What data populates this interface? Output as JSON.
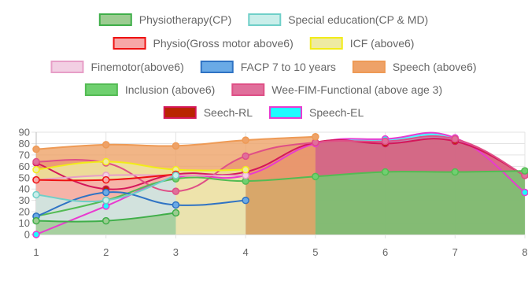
{
  "chart_data": {
    "type": "area",
    "x": [
      1,
      2,
      3,
      4,
      5,
      6,
      7,
      8
    ],
    "xlim": [
      1,
      8
    ],
    "ylim": [
      0,
      90
    ],
    "yticks": [
      0,
      10,
      20,
      30,
      40,
      50,
      60,
      70,
      80,
      90
    ],
    "grid": true,
    "legend_position": "top",
    "series": [
      {
        "name": "Physiotherapy(CP)",
        "color": "#3fae49",
        "fill": "#9ccc91",
        "values": [
          12,
          12,
          19,
          null,
          null,
          null,
          null,
          null
        ]
      },
      {
        "name": "Special education(CP & MD)",
        "color": "#6fcfc8",
        "fill": "#c9eeea",
        "values": [
          35,
          30,
          52,
          null,
          null,
          null,
          null,
          null
        ]
      },
      {
        "name": "Physio(Gross motor above6)",
        "color": "#ee1111",
        "fill": "#f7a7a7",
        "values": [
          48,
          48,
          53,
          null,
          null,
          null,
          null,
          null
        ]
      },
      {
        "name": "ICF (above6)",
        "color": "#f2ec18",
        "fill": "#eeeaa2",
        "values": [
          57,
          64,
          57,
          57,
          null,
          null,
          null,
          null
        ]
      },
      {
        "name": "Finemotor(above6)",
        "color": "#e79ec7",
        "fill": "#f2cfe3",
        "values": [
          48,
          52,
          52,
          52,
          null,
          null,
          null,
          null
        ]
      },
      {
        "name": "FACP 7 to 10 years",
        "color": "#2f73c4",
        "fill": "#6aaae6",
        "values": [
          16,
          37,
          26,
          30,
          null,
          null,
          null,
          null
        ]
      },
      {
        "name": "Speech (above6)",
        "color": "#ee9a55",
        "fill": "#eea268",
        "values": [
          75,
          79,
          78,
          83,
          86,
          null,
          null,
          null
        ]
      },
      {
        "name": "Inclusion (above6)",
        "color": "#53bb53",
        "fill": "#6fd06f",
        "values": [
          16,
          30,
          49,
          47,
          51,
          55,
          55,
          56
        ]
      },
      {
        "name": "Wee-FIM-Functional (above age 3)",
        "color": "#df4f86",
        "fill": "#e06f9b",
        "values": [
          64,
          63,
          38,
          69,
          81,
          82,
          84,
          52
        ]
      },
      {
        "name": "Seech-RL",
        "color": "#d4175a",
        "fill": "#b92500",
        "values": [
          63,
          40,
          53,
          55,
          81,
          80,
          82,
          52
        ]
      },
      {
        "name": "Speech-EL",
        "color": "#e93ad0",
        "fill": "#1efcff",
        "values": [
          0,
          25,
          50,
          52,
          80,
          84,
          85,
          37
        ]
      }
    ]
  }
}
